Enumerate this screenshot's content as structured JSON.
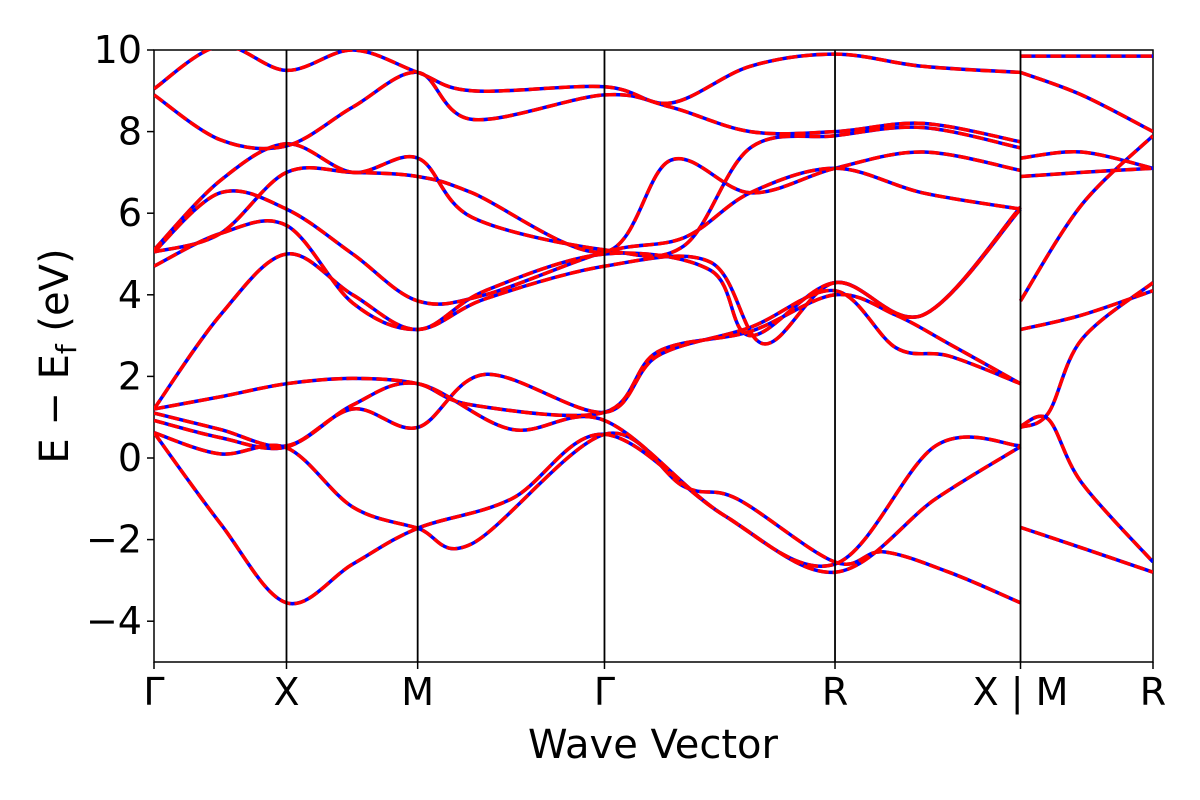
{
  "chart_data": {
    "type": "line",
    "xlabel": "Wave Vector",
    "ylabel": "E − E",
    "ylabel_sub": "f",
    "ylabel_unit": " (eV)",
    "ylim": [
      -5,
      10
    ],
    "yticks": [
      -4,
      -2,
      0,
      2,
      4,
      6,
      8,
      10
    ],
    "ytick_labels": [
      "−4",
      "−2",
      "0",
      "2",
      "4",
      "6",
      "8",
      "10"
    ],
    "xlim": [
      0,
      7.54
    ],
    "kpoints": [
      {
        "label": "Γ",
        "x": 0.0
      },
      {
        "label": "X",
        "x": 1.0
      },
      {
        "label": "M",
        "x": 1.99
      },
      {
        "label": "Γ",
        "x": 3.4
      },
      {
        "label": "R",
        "x": 5.14
      },
      {
        "label": "X | M",
        "x": 6.54
      },
      {
        "label": "R",
        "x": 7.54
      }
    ],
    "grid": false,
    "legend": "none",
    "series_styles": [
      {
        "color": "#0000ff",
        "style": "solid",
        "width": 3.5
      },
      {
        "color": "#ff0000",
        "style": "dashed",
        "width": 3.5
      }
    ],
    "bands": [
      [
        [
          0.0,
          0.62
        ],
        [
          0.5,
          -1.6
        ],
        [
          1.0,
          -3.55
        ],
        [
          1.5,
          -2.6
        ],
        [
          1.99,
          -1.72
        ],
        [
          2.7,
          -1.0
        ],
        [
          3.4,
          0.58
        ],
        [
          4.3,
          -1.4
        ],
        [
          5.14,
          -2.8
        ],
        [
          5.9,
          -1.0
        ],
        [
          6.54,
          0.28
        ]
      ],
      [
        [
          0.0,
          0.62
        ],
        [
          0.5,
          0.1
        ],
        [
          1.0,
          0.25
        ],
        [
          1.5,
          -1.2
        ],
        [
          1.99,
          -1.72
        ],
        [
          2.4,
          -2.1
        ],
        [
          3.4,
          0.58
        ],
        [
          4.0,
          -0.7
        ],
        [
          4.4,
          -1.0
        ],
        [
          5.14,
          -2.55
        ],
        [
          5.5,
          -2.3
        ],
        [
          6.0,
          -2.8
        ],
        [
          6.54,
          -3.55
        ]
      ],
      [
        [
          0.0,
          0.92
        ],
        [
          0.5,
          0.5
        ],
        [
          1.0,
          0.27
        ],
        [
          1.5,
          1.3
        ],
        [
          1.99,
          1.82
        ],
        [
          2.7,
          0.7
        ],
        [
          3.4,
          0.92
        ],
        [
          4.3,
          -1.4
        ],
        [
          5.14,
          -2.6
        ],
        [
          5.9,
          0.3
        ],
        [
          6.54,
          0.3
        ]
      ],
      [
        [
          0.0,
          1.1
        ],
        [
          0.5,
          0.7
        ],
        [
          1.0,
          0.3
        ],
        [
          1.5,
          1.2
        ],
        [
          1.99,
          0.75
        ],
        [
          2.5,
          2.05
        ],
        [
          3.4,
          1.12
        ],
        [
          3.8,
          2.5
        ],
        [
          4.5,
          3.2
        ],
        [
          5.14,
          4.1
        ],
        [
          5.6,
          2.7
        ],
        [
          6.0,
          2.5
        ],
        [
          6.54,
          1.82
        ]
      ],
      [
        [
          0.0,
          1.2
        ],
        [
          0.5,
          1.5
        ],
        [
          1.0,
          1.82
        ],
        [
          1.5,
          1.95
        ],
        [
          1.99,
          1.82
        ],
        [
          2.4,
          1.3
        ],
        [
          3.4,
          1.12
        ],
        [
          3.8,
          2.6
        ],
        [
          4.5,
          3.1
        ],
        [
          5.14,
          4.0
        ],
        [
          5.6,
          3.5
        ],
        [
          6.0,
          2.8
        ],
        [
          6.54,
          1.82
        ]
      ],
      [
        [
          0.0,
          1.2
        ],
        [
          0.5,
          3.5
        ],
        [
          1.0,
          5.0
        ],
        [
          1.5,
          4.0
        ],
        [
          1.99,
          3.15
        ],
        [
          2.5,
          4.1
        ],
        [
          3.4,
          5.0
        ],
        [
          4.2,
          4.6
        ],
        [
          4.5,
          3.0
        ],
        [
          5.14,
          4.3
        ],
        [
          5.8,
          3.5
        ],
        [
          6.54,
          6.15
        ]
      ],
      [
        [
          0.0,
          4.7
        ],
        [
          0.5,
          5.5
        ],
        [
          1.0,
          5.7
        ],
        [
          1.5,
          3.8
        ],
        [
          1.99,
          3.15
        ],
        [
          2.5,
          3.9
        ],
        [
          3.4,
          4.7
        ],
        [
          4.2,
          4.8
        ],
        [
          4.6,
          2.8
        ],
        [
          5.14,
          4.3
        ],
        [
          5.8,
          3.5
        ],
        [
          6.54,
          6.1
        ]
      ],
      [
        [
          0.0,
          5.05
        ],
        [
          0.5,
          6.5
        ],
        [
          1.0,
          6.1
        ],
        [
          1.5,
          5.0
        ],
        [
          1.99,
          3.85
        ],
        [
          2.5,
          4.0
        ],
        [
          3.4,
          5.05
        ],
        [
          4.0,
          5.4
        ],
        [
          4.5,
          6.5
        ],
        [
          5.14,
          7.1
        ],
        [
          5.8,
          6.5
        ],
        [
          6.54,
          6.1
        ]
      ],
      [
        [
          0.0,
          5.05
        ],
        [
          0.5,
          5.5
        ],
        [
          1.0,
          7.0
        ],
        [
          1.5,
          7.0
        ],
        [
          1.99,
          6.9
        ],
        [
          2.4,
          6.5
        ],
        [
          3.4,
          5.05
        ],
        [
          3.9,
          7.3
        ],
        [
          4.5,
          6.5
        ],
        [
          5.14,
          7.1
        ],
        [
          5.8,
          7.5
        ],
        [
          6.54,
          7.05
        ]
      ],
      [
        [
          0.0,
          5.1
        ],
        [
          0.5,
          6.8
        ],
        [
          1.0,
          7.7
        ],
        [
          1.5,
          7.0
        ],
        [
          1.99,
          7.35
        ],
        [
          2.4,
          5.9
        ],
        [
          3.4,
          5.1
        ],
        [
          4.0,
          5.2
        ],
        [
          4.5,
          7.6
        ],
        [
          5.14,
          7.9
        ],
        [
          5.8,
          8.1
        ],
        [
          6.54,
          7.6
        ]
      ],
      [
        [
          0.0,
          8.9
        ],
        [
          0.5,
          7.8
        ],
        [
          1.0,
          7.65
        ],
        [
          1.5,
          8.6
        ],
        [
          1.99,
          9.45
        ],
        [
          2.4,
          8.3
        ],
        [
          3.4,
          8.9
        ],
        [
          3.9,
          8.6
        ],
        [
          4.5,
          8.0
        ],
        [
          5.14,
          8.0
        ],
        [
          5.8,
          8.2
        ],
        [
          6.54,
          7.75
        ]
      ],
      [
        [
          0.0,
          9.05
        ],
        [
          0.5,
          10.1
        ],
        [
          1.0,
          9.5
        ],
        [
          1.5,
          10.0
        ],
        [
          1.99,
          9.45
        ],
        [
          2.4,
          9.0
        ],
        [
          3.4,
          9.1
        ],
        [
          3.9,
          8.7
        ],
        [
          4.5,
          9.6
        ],
        [
          5.14,
          9.9
        ],
        [
          5.8,
          9.6
        ],
        [
          6.54,
          9.45
        ]
      ],
      [
        [
          6.54,
          9.45
        ],
        [
          7.0,
          8.9
        ],
        [
          7.54,
          8.0
        ]
      ],
      [
        [
          6.54,
          7.35
        ],
        [
          7.0,
          7.5
        ],
        [
          7.54,
          7.1
        ]
      ],
      [
        [
          6.54,
          6.9
        ],
        [
          7.0,
          7.0
        ],
        [
          7.54,
          7.1
        ]
      ],
      [
        [
          6.54,
          3.85
        ],
        [
          7.0,
          6.2
        ],
        [
          7.54,
          7.9
        ]
      ],
      [
        [
          6.54,
          3.15
        ],
        [
          7.0,
          3.5
        ],
        [
          7.54,
          4.1
        ]
      ],
      [
        [
          6.54,
          0.75
        ],
        [
          6.75,
          1.1
        ],
        [
          7.0,
          2.9
        ],
        [
          7.54,
          4.3
        ]
      ],
      [
        [
          6.54,
          0.78
        ],
        [
          6.75,
          0.95
        ],
        [
          7.0,
          -0.6
        ],
        [
          7.54,
          -2.55
        ]
      ],
      [
        [
          6.54,
          -1.7
        ],
        [
          7.0,
          -2.2
        ],
        [
          7.54,
          -2.8
        ]
      ],
      [
        [
          6.54,
          9.85
        ],
        [
          7.54,
          9.85
        ]
      ]
    ]
  }
}
